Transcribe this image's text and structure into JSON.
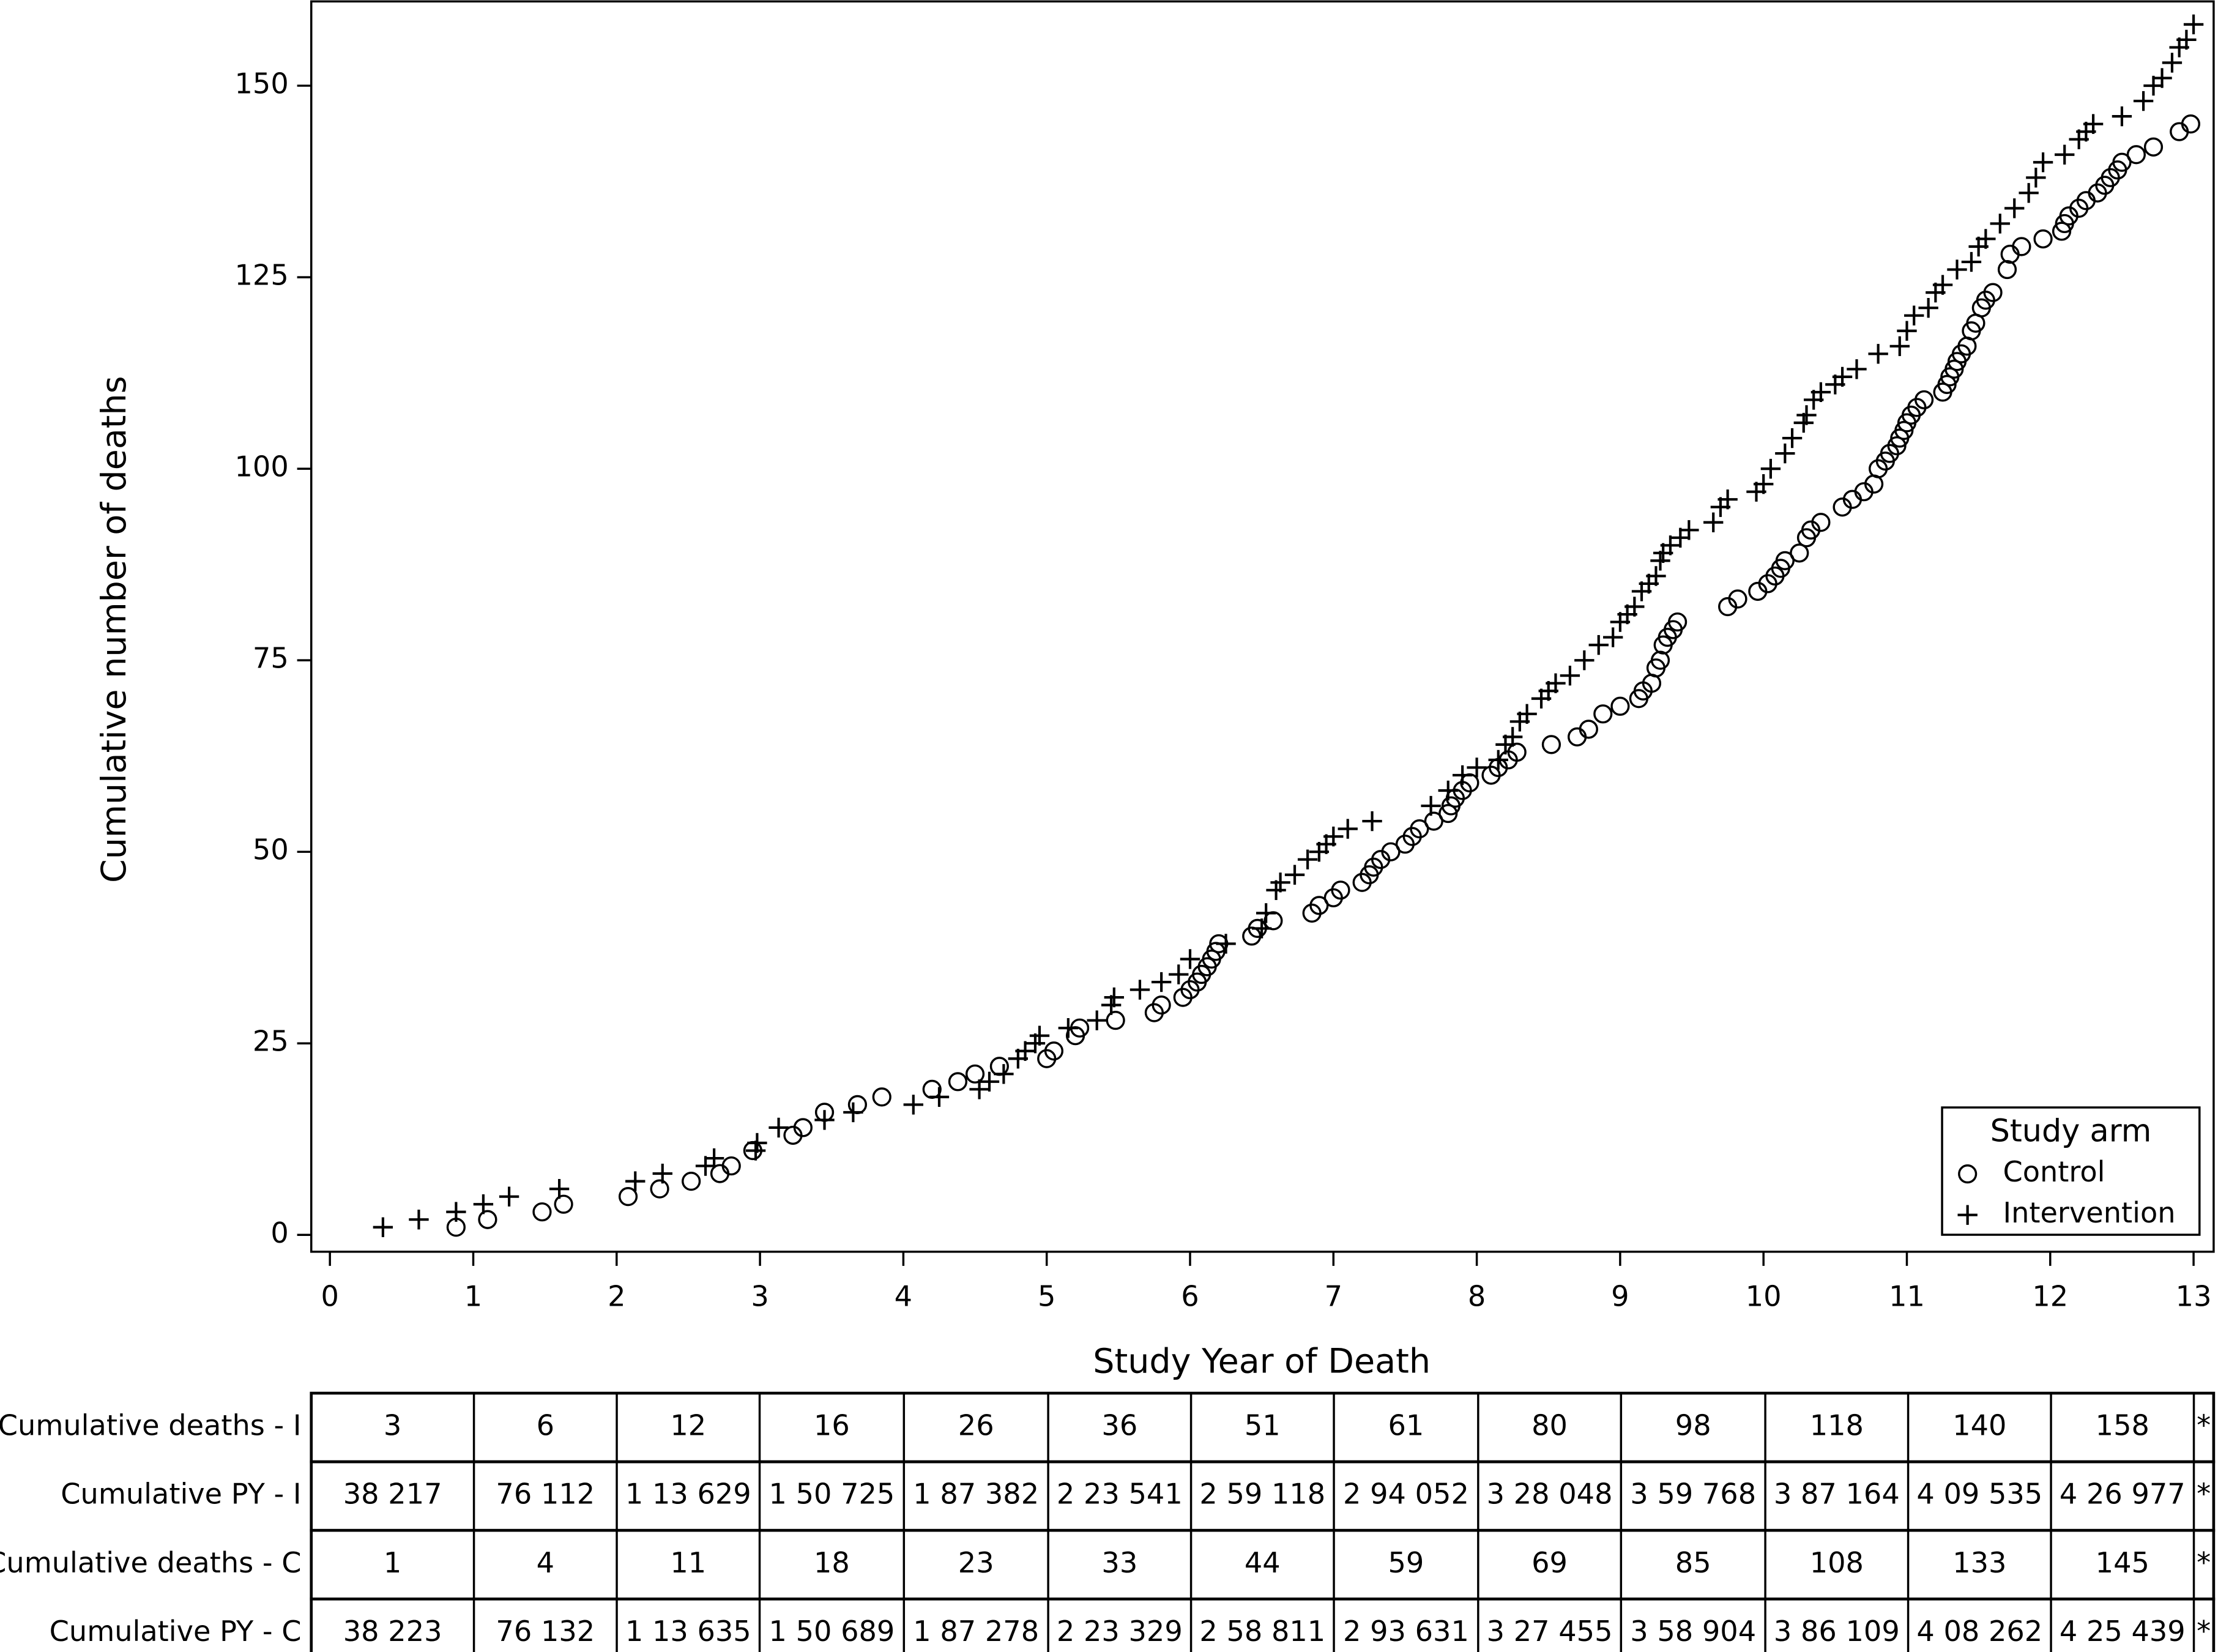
{
  "chart_data": {
    "type": "scatter",
    "xlabel": "Study Year of Death",
    "ylabel": "Cumulative number of deaths",
    "xlim": [
      -0.13,
      13.14
    ],
    "ylim": [
      -2.2,
      161
    ],
    "xticks": [
      0,
      1,
      2,
      3,
      4,
      5,
      6,
      7,
      8,
      9,
      10,
      11,
      12,
      13
    ],
    "yticks": [
      0,
      25,
      50,
      75,
      100,
      125,
      150
    ],
    "legend": {
      "title": "Study arm",
      "position": "lower right"
    },
    "series": [
      {
        "name": "Control",
        "marker": "circle",
        "color": "#000000",
        "x": [
          0.88,
          1.1,
          1.48,
          1.63,
          2.08,
          2.3,
          2.52,
          2.72,
          2.8,
          2.95,
          3.23,
          3.3,
          3.45,
          3.68,
          3.85,
          4.2,
          4.38,
          4.5,
          4.67,
          5.0,
          5.05,
          5.2,
          5.23,
          5.48,
          5.75,
          5.8,
          5.95,
          6.0,
          6.05,
          6.08,
          6.12,
          6.15,
          6.18,
          6.2,
          6.43,
          6.47,
          6.58,
          6.85,
          6.9,
          7.0,
          7.05,
          7.2,
          7.25,
          7.28,
          7.33,
          7.4,
          7.5,
          7.55,
          7.6,
          7.7,
          7.8,
          7.82,
          7.85,
          7.9,
          7.95,
          8.1,
          8.15,
          8.22,
          8.28,
          8.52,
          8.7,
          8.78,
          8.88,
          9.0,
          9.13,
          9.16,
          9.22,
          9.25,
          9.28,
          9.3,
          9.33,
          9.37,
          9.4,
          9.75,
          9.82,
          9.96,
          10.03,
          10.08,
          10.12,
          10.15,
          10.25,
          10.3,
          10.33,
          10.4,
          10.55,
          10.62,
          10.7,
          10.77,
          10.8,
          10.85,
          10.88,
          10.93,
          10.95,
          10.98,
          11.0,
          11.03,
          11.07,
          11.12,
          11.25,
          11.28,
          11.3,
          11.33,
          11.35,
          11.38,
          11.42,
          11.45,
          11.48,
          11.52,
          11.55,
          11.6,
          11.7,
          11.72,
          11.8,
          11.95,
          12.08,
          12.1,
          12.13,
          12.2,
          12.25,
          12.33,
          12.38,
          12.42,
          12.47,
          12.5,
          12.6,
          12.72,
          12.9,
          12.98
        ],
        "values": [
          1,
          2,
          3,
          4,
          5,
          6,
          7,
          8,
          9,
          11,
          13,
          14,
          16,
          17,
          18,
          19,
          20,
          21,
          22,
          23,
          24,
          26,
          27,
          28,
          29,
          30,
          31,
          32,
          33,
          34,
          35,
          36,
          37,
          38,
          39,
          40,
          41,
          42,
          43,
          44,
          45,
          46,
          47,
          48,
          49,
          50,
          51,
          52,
          53,
          54,
          55,
          56,
          57,
          58,
          59,
          60,
          61,
          62,
          63,
          64,
          65,
          66,
          68,
          69,
          70,
          71,
          72,
          74,
          75,
          77,
          78,
          79,
          80,
          82,
          83,
          84,
          85,
          86,
          87,
          88,
          89,
          91,
          92,
          93,
          95,
          96,
          97,
          98,
          100,
          101,
          102,
          103,
          104,
          105,
          106,
          107,
          108,
          109,
          110,
          111,
          112,
          113,
          114,
          115,
          116,
          118,
          119,
          121,
          122,
          123,
          126,
          128,
          129,
          130,
          131,
          132,
          133,
          134,
          135,
          136,
          137,
          138,
          139,
          140,
          141,
          142,
          144,
          145
        ]
      },
      {
        "name": "Intervention",
        "marker": "plus",
        "color": "#000000",
        "x": [
          0.37,
          0.62,
          0.88,
          1.07,
          1.25,
          1.6,
          2.13,
          2.32,
          2.62,
          2.68,
          2.97,
          2.98,
          3.13,
          3.45,
          3.65,
          4.07,
          4.25,
          4.53,
          4.6,
          4.7,
          4.8,
          4.85,
          4.92,
          4.95,
          5.15,
          5.35,
          5.45,
          5.47,
          5.65,
          5.8,
          5.92,
          6.0,
          6.25,
          6.5,
          6.53,
          6.6,
          6.63,
          6.73,
          6.82,
          6.9,
          6.95,
          7.0,
          7.1,
          7.27,
          7.68,
          7.8,
          7.9,
          8.0,
          8.15,
          8.2,
          8.25,
          8.3,
          8.35,
          8.45,
          8.5,
          8.55,
          8.65,
          8.75,
          8.85,
          8.95,
          9.0,
          9.05,
          9.1,
          9.15,
          9.2,
          9.25,
          9.28,
          9.3,
          9.35,
          9.42,
          9.48,
          9.65,
          9.7,
          9.75,
          9.95,
          10.0,
          10.05,
          10.15,
          10.2,
          10.28,
          10.3,
          10.35,
          10.4,
          10.5,
          10.55,
          10.65,
          10.8,
          10.95,
          11.0,
          11.05,
          11.15,
          11.2,
          11.25,
          11.35,
          11.45,
          11.5,
          11.55,
          11.65,
          11.75,
          11.85,
          11.9,
          11.95,
          12.1,
          12.2,
          12.25,
          12.3,
          12.5,
          12.65,
          12.72,
          12.78,
          12.85,
          12.9,
          12.95,
          13.0
        ],
        "values": [
          1,
          2,
          3,
          4,
          5,
          6,
          7,
          8,
          9,
          10,
          11,
          12,
          14,
          15,
          16,
          17,
          18,
          19,
          20,
          21,
          23,
          24,
          25,
          26,
          27,
          28,
          30,
          31,
          32,
          33,
          34,
          36,
          38,
          40,
          42,
          45,
          46,
          47,
          49,
          50,
          51,
          52,
          53,
          54,
          56,
          58,
          60,
          61,
          62,
          64,
          65,
          67,
          68,
          70,
          71,
          72,
          73,
          75,
          77,
          78,
          80,
          81,
          82,
          84,
          85,
          86,
          88,
          89,
          90,
          91,
          92,
          93,
          95,
          96,
          97,
          98,
          100,
          102,
          104,
          106,
          107,
          109,
          110,
          111,
          112,
          113,
          115,
          116,
          118,
          120,
          121,
          123,
          124,
          126,
          127,
          129,
          130,
          132,
          134,
          136,
          138,
          140,
          141,
          143,
          144,
          145,
          146,
          148,
          150,
          151,
          153,
          155,
          156,
          158
        ]
      }
    ]
  },
  "table": {
    "rows": [
      {
        "label": "Cumulative deaths - I",
        "cells": [
          3,
          6,
          12,
          16,
          26,
          36,
          51,
          61,
          80,
          98,
          118,
          140,
          158,
          "*"
        ]
      },
      {
        "label": "Cumulative PY - I",
        "cells": [
          "38 217",
          "76 112",
          "1 13 629",
          "1 50 725",
          "1 87 382",
          "2 23 541",
          "2 59 118",
          "2 94 052",
          "3 28 048",
          "3 59 768",
          "3 87 164",
          "4 09 535",
          "4 26 977",
          "*"
        ]
      },
      {
        "label": "Cumulative deaths - C",
        "cells": [
          1,
          4,
          11,
          18,
          23,
          33,
          44,
          59,
          69,
          85,
          108,
          133,
          145,
          "*"
        ]
      },
      {
        "label": "Cumulative PY - C",
        "cells": [
          "38 223",
          "76 132",
          "1 13 635",
          "1 50 689",
          "1 87 278",
          "2 23 329",
          "2 58 811",
          "2 93 631",
          "3 27 455",
          "3 58 904",
          "3 86 109",
          "4 08 262",
          "4 25 439",
          "*"
        ]
      }
    ]
  }
}
